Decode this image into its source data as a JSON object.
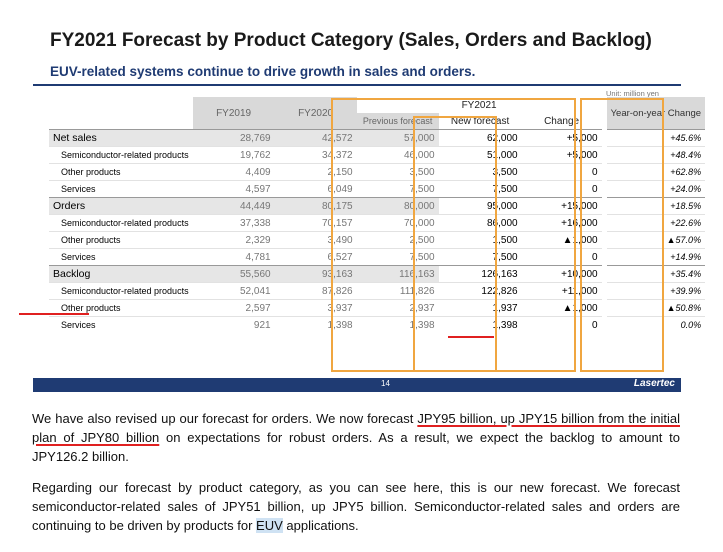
{
  "slide": {
    "title": "FY2021 Forecast by Product Category (Sales, Orders and Backlog)",
    "subtitle": "EUV-related systems continue to drive growth in sales and orders.",
    "unit": "Unit: million yen",
    "page_number": "14",
    "brand": "Lasertec"
  },
  "table": {
    "headers": {
      "fy2019": "FY2019",
      "fy2020": "FY2020",
      "fy2021": "FY2021",
      "previous": "Previous forecast",
      "new": "New forecast",
      "change": "Change",
      "yoy": "Year-on-year Change"
    },
    "groups": [
      {
        "rows": [
          {
            "label": "Net sales",
            "fy2019": "28,769",
            "fy2020": "42,572",
            "prev": "57,000",
            "new": "62,000",
            "change": "+5,000",
            "yoy": "+45.6%"
          },
          {
            "label": "Semiconductor-related products",
            "fy2019": "19,762",
            "fy2020": "34,372",
            "prev": "46,000",
            "new": "51,000",
            "change": "+5,000",
            "yoy": "+48.4%"
          },
          {
            "label": "Other products",
            "fy2019": "4,409",
            "fy2020": "2,150",
            "prev": "3,500",
            "new": "3,500",
            "change": "0",
            "yoy": "+62.8%"
          },
          {
            "label": "Services",
            "fy2019": "4,597",
            "fy2020": "6,049",
            "prev": "7,500",
            "new": "7,500",
            "change": "0",
            "yoy": "+24.0%"
          }
        ]
      },
      {
        "rows": [
          {
            "label": "Orders",
            "fy2019": "44,449",
            "fy2020": "80,175",
            "prev": "80,000",
            "new": "95,000",
            "change": "+15,000",
            "yoy": "+18.5%"
          },
          {
            "label": "Semiconductor-related products",
            "fy2019": "37,338",
            "fy2020": "70,157",
            "prev": "70,000",
            "new": "86,000",
            "change": "+16,000",
            "yoy": "+22.6%"
          },
          {
            "label": "Other products",
            "fy2019": "2,329",
            "fy2020": "3,490",
            "prev": "2,500",
            "new": "1,500",
            "change": "▲1,000",
            "yoy": "▲57.0%"
          },
          {
            "label": "Services",
            "fy2019": "4,781",
            "fy2020": "6,527",
            "prev": "7,500",
            "new": "7,500",
            "change": "0",
            "yoy": "+14.9%"
          }
        ]
      },
      {
        "rows": [
          {
            "label": "Backlog",
            "fy2019": "55,560",
            "fy2020": "93,163",
            "prev": "116,163",
            "new": "126,163",
            "change": "+10,000",
            "yoy": "+35.4%"
          },
          {
            "label": "Semiconductor-related products",
            "fy2019": "52,041",
            "fy2020": "87,826",
            "prev": "111,826",
            "new": "122,826",
            "change": "+11,000",
            "yoy": "+39.9%"
          },
          {
            "label": "Other products",
            "fy2019": "2,597",
            "fy2020": "3,937",
            "prev": "2,937",
            "new": "1,937",
            "change": "▲1,000",
            "yoy": "▲50.8%"
          },
          {
            "label": "Services",
            "fy2019": "921",
            "fy2020": "1,398",
            "prev": "1,398",
            "new": "1,398",
            "change": "0",
            "yoy": "0.0%"
          }
        ]
      }
    ]
  },
  "paragraphs": {
    "p1": {
      "a": "We have also revised up our forecast for orders. We now forecast ",
      "b": "JPY95 billion, up JPY15 billion from the initial plan of JPY80 billion",
      "c": " on expectations for robust orders. As a result, we expect the backlog to amount to JPY126.2 billion."
    },
    "p2": {
      "a": "Regarding our forecast by product category, as you can see here, this is our new forecast. We forecast semiconductor-related sales of JPY51 billion, up JPY5 billion. Semiconductor-related sales and orders are continuing to be driven by products for ",
      "b": "EUV",
      "c": " applications."
    }
  },
  "colors": {
    "navy": "#1f3b73",
    "orange_box": "#f0a640",
    "annotation_red": "#e02020",
    "highlight": "#cfe2f3"
  }
}
